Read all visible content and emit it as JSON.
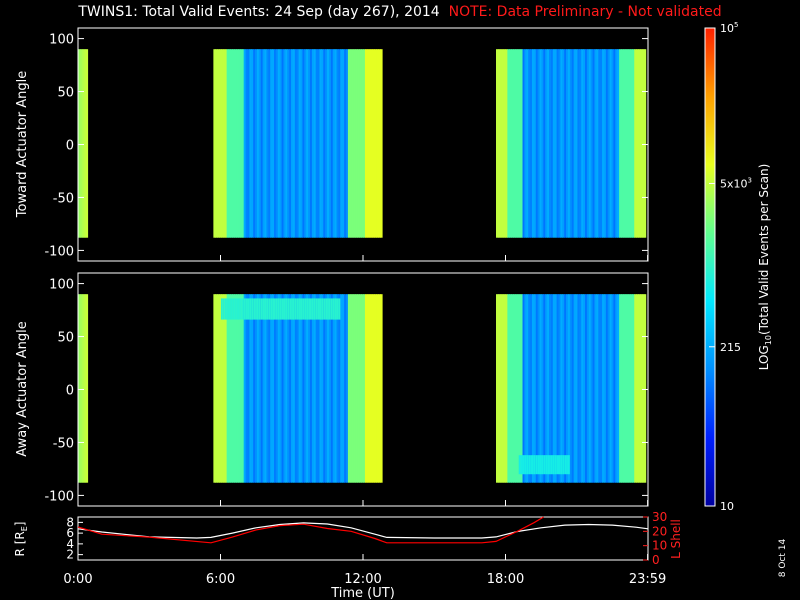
{
  "title": {
    "main": "TWINS1: Total Valid Events: 24 Sep (day 267), 2014",
    "note": "NOTE: Data Preliminary - Not validated"
  },
  "side_date": "8 Oct 14",
  "colorbar": {
    "label_prefix": "LOG",
    "label_sub": "10",
    "label_suffix": "(Total Valid Events per Scan)",
    "ticks": [
      {
        "base": "10",
        "exp": ""
      },
      {
        "base": "215",
        "exp": ""
      },
      {
        "base": "5x10",
        "exp": "3"
      },
      {
        "base": "10",
        "exp": "5"
      }
    ],
    "tick_values": [
      10,
      215,
      5000,
      100000
    ],
    "scale": "log",
    "range": [
      10,
      100000
    ],
    "colors": [
      "#0000a0",
      "#0020ff",
      "#0090ff",
      "#00e8ff",
      "#60ff90",
      "#e8ff20",
      "#ffa000",
      "#ff2000"
    ]
  },
  "panels": {
    "toward": {
      "ylabel": "Toward Actuator Angle"
    },
    "away": {
      "ylabel": "Away Actuator Angle"
    },
    "orbit": {
      "ylabel_left": "R [R",
      "ylabel_left_sub": "E",
      "ylabel_left_end": "]",
      "ylabel_right": "L Shell",
      "left_ticks": [
        "2",
        "4",
        "6",
        "8"
      ],
      "right_ticks": [
        "0",
        "10",
        "20",
        "30"
      ]
    }
  },
  "x_axis": {
    "label": "Time (UT)",
    "ticks": [
      "0:00",
      "6:00",
      "12:00",
      "18:00",
      "23:59"
    ]
  },
  "chart_data": [
    {
      "type": "heatmap",
      "title": "",
      "ylabel": "Toward Actuator Angle",
      "xlabel": "",
      "xlim": [
        0,
        24
      ],
      "ylim": [
        -110,
        110
      ],
      "yticks": [
        -100,
        -50,
        0,
        50,
        100
      ],
      "z_scale": "log",
      "data_coverage_hours": [
        [
          0.0,
          0.4
        ],
        [
          5.7,
          12.8
        ],
        [
          17.6,
          23.9
        ]
      ],
      "angle_range": [
        -88,
        90
      ],
      "notes_z": "yellow/green near edges of passes (~2000-8000), blue mid-pass (~100-300)"
    },
    {
      "type": "heatmap",
      "title": "",
      "ylabel": "Away Actuator Angle",
      "xlabel": "",
      "xlim": [
        0,
        24
      ],
      "ylim": [
        -110,
        110
      ],
      "yticks": [
        -100,
        -50,
        0,
        50,
        100
      ],
      "z_scale": "log",
      "data_coverage_hours": [
        [
          0.0,
          0.4
        ],
        [
          5.7,
          12.8
        ],
        [
          17.6,
          23.9
        ]
      ],
      "angle_range": [
        -88,
        90
      ]
    },
    {
      "type": "line",
      "title": "",
      "xlabel": "Time (UT)",
      "ylabel": "R [RE]",
      "y2label": "L Shell",
      "xlim": [
        0,
        24
      ],
      "ylim": [
        1,
        9
      ],
      "y2lim": [
        0,
        30
      ],
      "series": [
        {
          "name": "R",
          "color": "#ffffff",
          "x": [
            0,
            1,
            3,
            5,
            5.6,
            6.5,
            7.5,
            8.5,
            9.5,
            10.5,
            11.5,
            12.5,
            13,
            15,
            17,
            17.6,
            18.5,
            19.5,
            20.5,
            21.5,
            22.5,
            23.5,
            24
          ],
          "y": [
            6.8,
            6.2,
            5.3,
            5.1,
            5.2,
            6.0,
            7.0,
            7.6,
            7.9,
            7.7,
            7.0,
            5.8,
            5.2,
            5.1,
            5.1,
            5.3,
            6.3,
            7.0,
            7.5,
            7.6,
            7.5,
            7.1,
            6.8
          ]
        },
        {
          "name": "L Shell",
          "color": "#ff0000",
          "x": [
            0,
            1,
            3,
            5.6,
            6.5,
            7.5,
            8.5,
            9.5,
            10.5,
            11.5,
            12.5,
            13,
            15,
            17,
            17.6,
            18.5,
            19.2,
            19.6
          ],
          "y": [
            23,
            18,
            16,
            12,
            16,
            21,
            24,
            25,
            22,
            20,
            15,
            12,
            12,
            12,
            13,
            20,
            26,
            30
          ]
        }
      ]
    }
  ]
}
